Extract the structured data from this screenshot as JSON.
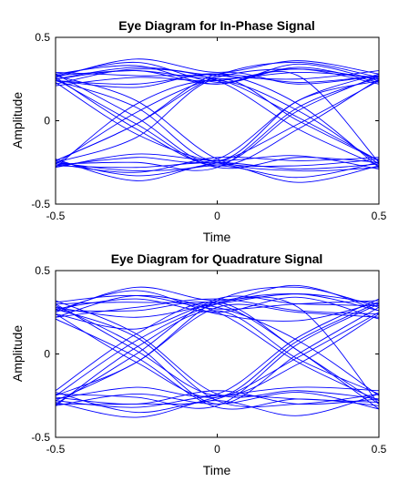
{
  "chart_data": [
    {
      "type": "line",
      "title": "Eye Diagram for In-Phase Signal",
      "xlabel": "Time",
      "ylabel": "Amplitude",
      "xlim": [
        -0.5,
        0.5
      ],
      "ylim": [
        -0.5,
        0.5
      ],
      "xticks": [
        -0.5,
        0,
        0.5
      ],
      "xtick_labels": [
        "-0.5",
        "0",
        "0.5"
      ],
      "yticks": [
        -0.5,
        0,
        0.5
      ],
      "ytick_labels": [
        "-0.5",
        "0",
        "0.5"
      ],
      "grid": false,
      "line_color": "#0000ff",
      "series": [
        {
          "x": [
            -0.5,
            -0.25,
            0,
            0.25,
            0.5
          ],
          "values": [
            0.27,
            0.3,
            0.25,
            0.29,
            0.26
          ]
        },
        {
          "x": [
            -0.5,
            -0.25,
            0,
            0.25,
            0.5
          ],
          "values": [
            0.24,
            0.22,
            0.28,
            0.23,
            0.27
          ]
        },
        {
          "x": [
            -0.5,
            -0.25,
            0,
            0.25,
            0.5
          ],
          "values": [
            0.28,
            0.33,
            0.22,
            0.34,
            0.24
          ]
        },
        {
          "x": [
            -0.5,
            -0.25,
            0,
            0.25,
            0.5
          ],
          "values": [
            0.26,
            0.37,
            0.29,
            0.36,
            0.28
          ]
        },
        {
          "x": [
            -0.5,
            -0.25,
            0,
            0.25,
            0.5
          ],
          "values": [
            0.21,
            0.26,
            0.24,
            0.31,
            0.22
          ]
        },
        {
          "x": [
            -0.5,
            -0.25,
            0,
            0.25,
            0.5
          ],
          "values": [
            0.25,
            0.32,
            0.27,
            0.25,
            0.3
          ]
        },
        {
          "x": [
            -0.5,
            -0.25,
            0,
            0.25,
            0.5
          ],
          "values": [
            0.27,
            0.35,
            0.23,
            0.27,
            -0.25
          ]
        },
        {
          "x": [
            -0.5,
            -0.25,
            0,
            0.25,
            0.5
          ],
          "values": [
            0.24,
            0.2,
            0.28,
            0.1,
            -0.28
          ]
        },
        {
          "x": [
            -0.5,
            -0.25,
            0,
            0.25,
            0.5
          ],
          "values": [
            0.29,
            0.27,
            0.25,
            0.02,
            -0.24
          ]
        },
        {
          "x": [
            -0.5,
            -0.25,
            0,
            0.25,
            0.5
          ],
          "values": [
            0.22,
            0.31,
            0.24,
            -0.05,
            -0.27
          ]
        },
        {
          "x": [
            -0.5,
            -0.25,
            0,
            0.25,
            0.5
          ],
          "values": [
            0.28,
            0.02,
            -0.26,
            0.06,
            0.27
          ]
        },
        {
          "x": [
            -0.5,
            -0.25,
            0,
            0.25,
            0.5
          ],
          "values": [
            0.24,
            0.08,
            -0.24,
            0.12,
            0.24
          ]
        },
        {
          "x": [
            -0.5,
            -0.25,
            0,
            0.25,
            0.5
          ],
          "values": [
            0.26,
            -0.05,
            -0.28,
            -0.22,
            -0.25
          ]
        },
        {
          "x": [
            -0.5,
            -0.25,
            0,
            0.25,
            0.5
          ],
          "values": [
            0.27,
            0.12,
            -0.23,
            -0.3,
            -0.28
          ]
        },
        {
          "x": [
            -0.5,
            -0.25,
            0,
            0.25,
            0.5
          ],
          "values": [
            0.23,
            -0.08,
            -0.25,
            -0.27,
            -0.23
          ]
        },
        {
          "x": [
            -0.5,
            -0.25,
            0,
            0.25,
            0.5
          ],
          "values": [
            -0.26,
            0.05,
            0.26,
            0.31,
            0.25
          ]
        },
        {
          "x": [
            -0.5,
            -0.25,
            0,
            0.25,
            0.5
          ],
          "values": [
            -0.24,
            -0.02,
            0.28,
            0.22,
            0.27
          ]
        },
        {
          "x": [
            -0.5,
            -0.25,
            0,
            0.25,
            0.5
          ],
          "values": [
            -0.28,
            0.1,
            0.24,
            0.06,
            -0.26
          ]
        },
        {
          "x": [
            -0.5,
            -0.25,
            0,
            0.25,
            0.5
          ],
          "values": [
            -0.25,
            -0.1,
            0.25,
            0.0,
            -0.24
          ]
        },
        {
          "x": [
            -0.5,
            -0.25,
            0,
            0.25,
            0.5
          ],
          "values": [
            -0.27,
            -0.28,
            -0.25,
            -0.29,
            -0.26
          ]
        },
        {
          "x": [
            -0.5,
            -0.25,
            0,
            0.25,
            0.5
          ],
          "values": [
            -0.24,
            -0.33,
            -0.27,
            -0.34,
            -0.25
          ]
        },
        {
          "x": [
            -0.5,
            -0.25,
            0,
            0.25,
            0.5
          ],
          "values": [
            -0.28,
            -0.2,
            -0.24,
            -0.21,
            -0.29
          ]
        },
        {
          "x": [
            -0.5,
            -0.25,
            0,
            0.25,
            0.5
          ],
          "values": [
            -0.23,
            -0.36,
            -0.26,
            -0.37,
            -0.27
          ]
        },
        {
          "x": [
            -0.5,
            -0.25,
            0,
            0.25,
            0.5
          ],
          "values": [
            -0.26,
            -0.25,
            -0.28,
            0.08,
            0.26
          ]
        },
        {
          "x": [
            -0.5,
            -0.25,
            0,
            0.25,
            0.5
          ],
          "values": [
            -0.25,
            -0.3,
            -0.25,
            -0.02,
            0.24
          ]
        },
        {
          "x": [
            -0.5,
            -0.25,
            0,
            0.25,
            0.5
          ],
          "values": [
            -0.27,
            -0.22,
            -0.23,
            0.12,
            0.28
          ]
        },
        {
          "x": [
            -0.5,
            -0.25,
            0,
            0.25,
            0.5
          ],
          "values": [
            -0.24,
            -0.02,
            0.27,
            0.35,
            0.26
          ]
        },
        {
          "x": [
            -0.5,
            -0.25,
            0,
            0.25,
            0.5
          ],
          "values": [
            0.25,
            0.3,
            0.22,
            0.32,
            0.23
          ]
        },
        {
          "x": [
            -0.5,
            -0.25,
            0,
            0.25,
            0.5
          ],
          "values": [
            -0.26,
            -0.31,
            -0.22,
            -0.24,
            -0.22
          ]
        },
        {
          "x": [
            -0.5,
            -0.25,
            0,
            0.25,
            0.5
          ],
          "values": [
            0.25,
            -0.02,
            -0.27,
            -0.05,
            0.25
          ]
        }
      ]
    },
    {
      "type": "line",
      "title": "Eye Diagram for Quadrature Signal",
      "xlabel": "Time",
      "ylabel": "Amplitude",
      "xlim": [
        -0.5,
        0.5
      ],
      "ylim": [
        -0.5,
        0.5
      ],
      "xticks": [
        -0.5,
        0,
        0.5
      ],
      "xtick_labels": [
        "-0.5",
        "0",
        "0.5"
      ],
      "yticks": [
        -0.5,
        0,
        0.5
      ],
      "ytick_labels": [
        "-0.5",
        "0",
        "0.5"
      ],
      "grid": false,
      "line_color": "#0000ff",
      "series": [
        {
          "x": [
            -0.5,
            -0.25,
            0,
            0.25,
            0.5
          ],
          "values": [
            0.28,
            0.22,
            0.3,
            0.36,
            0.3
          ]
        },
        {
          "x": [
            -0.5,
            -0.25,
            0,
            0.25,
            0.5
          ],
          "values": [
            0.25,
            0.4,
            0.32,
            0.41,
            0.26
          ]
        },
        {
          "x": [
            -0.5,
            -0.25,
            0,
            0.25,
            0.5
          ],
          "values": [
            0.31,
            0.35,
            0.27,
            0.3,
            0.32
          ]
        },
        {
          "x": [
            -0.5,
            -0.25,
            0,
            0.25,
            0.5
          ],
          "values": [
            0.22,
            0.28,
            0.33,
            0.26,
            0.24
          ]
        },
        {
          "x": [
            -0.5,
            -0.25,
            0,
            0.25,
            0.5
          ],
          "values": [
            0.27,
            0.33,
            0.25,
            0.34,
            0.21
          ]
        },
        {
          "x": [
            -0.5,
            -0.25,
            0,
            0.25,
            0.5
          ],
          "values": [
            0.24,
            0.15,
            0.31,
            0.28,
            -0.3
          ]
        },
        {
          "x": [
            -0.5,
            -0.25,
            0,
            0.25,
            0.5
          ],
          "values": [
            0.3,
            0.31,
            0.28,
            0.08,
            -0.25
          ]
        },
        {
          "x": [
            -0.5,
            -0.25,
            0,
            0.25,
            0.5
          ],
          "values": [
            0.26,
            0.26,
            0.3,
            0.02,
            -0.33
          ]
        },
        {
          "x": [
            -0.5,
            -0.25,
            0,
            0.25,
            0.5
          ],
          "values": [
            0.22,
            0.35,
            0.25,
            -0.05,
            -0.28
          ]
        },
        {
          "x": [
            -0.5,
            -0.25,
            0,
            0.25,
            0.5
          ],
          "values": [
            0.29,
            0.05,
            -0.3,
            0.0,
            0.28
          ]
        },
        {
          "x": [
            -0.5,
            -0.25,
            0,
            0.25,
            0.5
          ],
          "values": [
            0.24,
            -0.05,
            -0.26,
            0.08,
            0.31
          ]
        },
        {
          "x": [
            -0.5,
            -0.25,
            0,
            0.25,
            0.5
          ],
          "values": [
            0.27,
            0.1,
            -0.28,
            -0.3,
            -0.24
          ]
        },
        {
          "x": [
            -0.5,
            -0.25,
            0,
            0.25,
            0.5
          ],
          "values": [
            0.21,
            -0.02,
            -0.32,
            -0.27,
            -0.31
          ]
        },
        {
          "x": [
            -0.5,
            -0.25,
            0,
            0.25,
            0.5
          ],
          "values": [
            0.32,
            0.12,
            -0.24,
            -0.22,
            -0.27
          ]
        },
        {
          "x": [
            -0.5,
            -0.25,
            0,
            0.25,
            0.5
          ],
          "values": [
            -0.25,
            0.08,
            0.3,
            0.36,
            0.26
          ]
        },
        {
          "x": [
            -0.5,
            -0.25,
            0,
            0.25,
            0.5
          ],
          "values": [
            -0.3,
            0.0,
            0.33,
            0.3,
            0.29
          ]
        },
        {
          "x": [
            -0.5,
            -0.25,
            0,
            0.25,
            0.5
          ],
          "values": [
            -0.28,
            -0.05,
            0.28,
            0.25,
            0.22
          ]
        },
        {
          "x": [
            -0.5,
            -0.25,
            0,
            0.25,
            0.5
          ],
          "values": [
            -0.22,
            0.12,
            0.31,
            0.02,
            -0.3
          ]
        },
        {
          "x": [
            -0.5,
            -0.25,
            0,
            0.25,
            0.5
          ],
          "values": [
            -0.31,
            0.04,
            0.26,
            -0.03,
            -0.24
          ]
        },
        {
          "x": [
            -0.5,
            -0.25,
            0,
            0.25,
            0.5
          ],
          "values": [
            -0.26,
            -0.3,
            -0.22,
            -0.3,
            -0.27
          ]
        },
        {
          "x": [
            -0.5,
            -0.25,
            0,
            0.25,
            0.5
          ],
          "values": [
            -0.23,
            -0.35,
            -0.28,
            -0.37,
            -0.24
          ]
        },
        {
          "x": [
            -0.5,
            -0.25,
            0,
            0.25,
            0.5
          ],
          "values": [
            -0.31,
            -0.24,
            -0.3,
            -0.23,
            -0.33
          ]
        },
        {
          "x": [
            -0.5,
            -0.25,
            0,
            0.25,
            0.5
          ],
          "values": [
            -0.28,
            -0.32,
            -0.25,
            -0.27,
            -0.29
          ]
        },
        {
          "x": [
            -0.5,
            -0.25,
            0,
            0.25,
            0.5
          ],
          "values": [
            -0.24,
            -0.26,
            -0.31,
            0.06,
            0.3
          ]
        },
        {
          "x": [
            -0.5,
            -0.25,
            0,
            0.25,
            0.5
          ],
          "values": [
            -0.3,
            -0.3,
            -0.27,
            -0.02,
            0.25
          ]
        },
        {
          "x": [
            -0.5,
            -0.25,
            0,
            0.25,
            0.5
          ],
          "values": [
            -0.27,
            -0.2,
            -0.24,
            0.1,
            0.33
          ]
        },
        {
          "x": [
            -0.5,
            -0.25,
            0,
            0.25,
            0.5
          ],
          "values": [
            -0.25,
            -0.05,
            0.32,
            0.4,
            0.28
          ]
        },
        {
          "x": [
            -0.5,
            -0.25,
            0,
            0.25,
            0.5
          ],
          "values": [
            0.26,
            0.38,
            0.24,
            0.2,
            0.31
          ]
        },
        {
          "x": [
            -0.5,
            -0.25,
            0,
            0.25,
            0.5
          ],
          "values": [
            -0.29,
            -0.38,
            -0.26,
            -0.2,
            -0.22
          ]
        },
        {
          "x": [
            -0.5,
            -0.25,
            0,
            0.25,
            0.5
          ],
          "values": [
            0.3,
            0.02,
            -0.25,
            -0.06,
            0.24
          ]
        }
      ]
    }
  ]
}
